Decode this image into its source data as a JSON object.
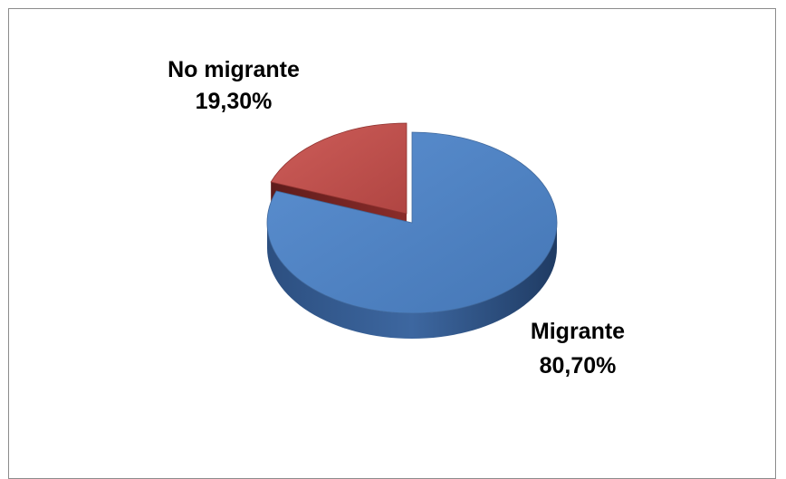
{
  "chart_data": {
    "type": "pie",
    "style": "3d-exploded",
    "slices": [
      {
        "label": "Migrante",
        "value": 80.7,
        "value_label": "80,70%",
        "color": "#4f81bd"
      },
      {
        "label": "No migrante",
        "value": 19.3,
        "value_label": "19,30%",
        "color": "#c0504d"
      }
    ]
  }
}
